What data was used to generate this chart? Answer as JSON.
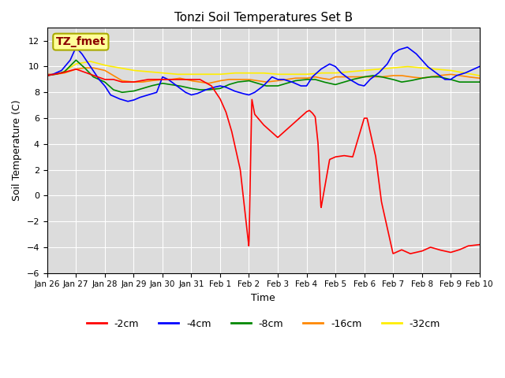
{
  "title": "Tonzi Soil Temperatures Set B",
  "xlabel": "Time",
  "ylabel": "Soil Temperature (C)",
  "ylim": [
    -6,
    13
  ],
  "yticks": [
    -6,
    -4,
    -2,
    0,
    2,
    4,
    6,
    8,
    10,
    12
  ],
  "xlim": [
    0,
    15
  ],
  "xtick_labels": [
    "Jan 26",
    "Jan 27",
    "Jan 28",
    "Jan 29",
    "Jan 30",
    "Jan 31",
    "Feb 1",
    "Feb 2",
    "Feb 3",
    "Feb 4",
    "Feb 5",
    "Feb 6",
    "Feb 7",
    "Feb 8",
    "Feb 9",
    "Feb 10"
  ],
  "annotation_text": "TZ_fmet",
  "annotation_color": "#8B0000",
  "annotation_bg": "#FFFF99",
  "annotation_border": "#AAAA00",
  "bg_color": "#DCDCDC",
  "white_bg": "#FFFFFF",
  "line_colors": {
    "m2cm": "#FF0000",
    "m4cm": "#0000FF",
    "m8cm": "#008800",
    "m16cm": "#FF8800",
    "m32cm": "#FFEE00"
  },
  "legend_labels": [
    "-2cm",
    "-4cm",
    "-8cm",
    "-16cm",
    "-32cm"
  ],
  "lw": 1.2
}
